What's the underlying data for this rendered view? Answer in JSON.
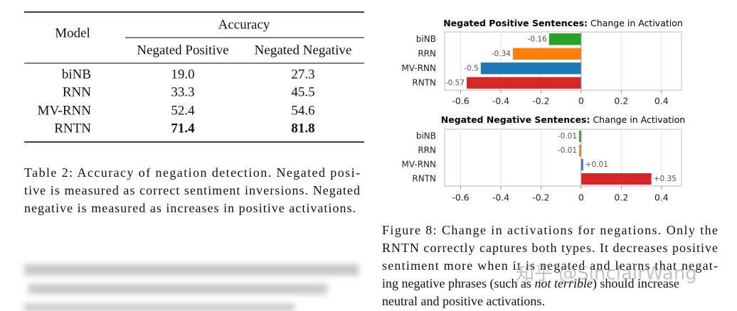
{
  "table": {
    "header": {
      "model": "Model",
      "group": "Accuracy",
      "columns": [
        "Negated Positive",
        "Negated Negative"
      ]
    },
    "rows": [
      [
        "biNB",
        "19.0",
        "27.3"
      ],
      [
        "RNN",
        "33.3",
        "45.5"
      ],
      [
        "MV-RNN",
        "52.4",
        "54.6"
      ],
      [
        "RNTN",
        "71.4",
        "81.8"
      ]
    ],
    "bold_row": 3
  },
  "table_caption": [
    "Table 2: Accuracy of negation detection. Negated posi-",
    "tive is measured as correct sentiment inversions. Negated",
    "negative is measured as increases in positive activations."
  ],
  "chart_data": [
    {
      "type": "hbar",
      "title": [
        "Negated Positive Sentences:",
        "Change in Activation"
      ],
      "categories": [
        "biNB",
        "RRN",
        "MV-RNN",
        "RNTN"
      ],
      "values": [
        -0.16,
        -0.34,
        -0.5,
        -0.57
      ],
      "colors": [
        "#2ca02c",
        "#ff7f0e",
        "#1f77b4",
        "#d62728"
      ],
      "xlim": [
        -0.68,
        0.5
      ],
      "xticks": [
        -0.6,
        -0.4,
        -0.2,
        0,
        0.2,
        0.4
      ],
      "grid": true
    },
    {
      "type": "hbar",
      "title": [
        "Negated Negative Sentences:",
        "Change in Activation"
      ],
      "categories": [
        "biNB",
        "RRN",
        "MV-RNN",
        "RNTN"
      ],
      "values": [
        -0.01,
        -0.01,
        0.01,
        0.35
      ],
      "value_labels": [
        "-0.01",
        "-0.01",
        "+0.01",
        "+0.35"
      ],
      "colors": [
        "#2ca02c",
        "#ff7f0e",
        "#1f77b4",
        "#d62728"
      ],
      "xlim": [
        -0.68,
        0.5
      ],
      "xticks": [
        -0.6,
        -0.4,
        -0.2,
        0,
        0.2,
        0.4
      ],
      "grid": true
    }
  ],
  "figure_caption": {
    "lines": [
      "Figure 8: Change in activations for negations. Only the",
      "RNTN correctly captures both types. It decreases positive",
      "sentiment more when it is negated and learns that negat-"
    ],
    "line4": [
      "ing negative phrases (such as ",
      "not terrible",
      ") should increase"
    ],
    "line5": "neutral and positive activations."
  },
  "watermark": "知乎 @SinclairWang"
}
